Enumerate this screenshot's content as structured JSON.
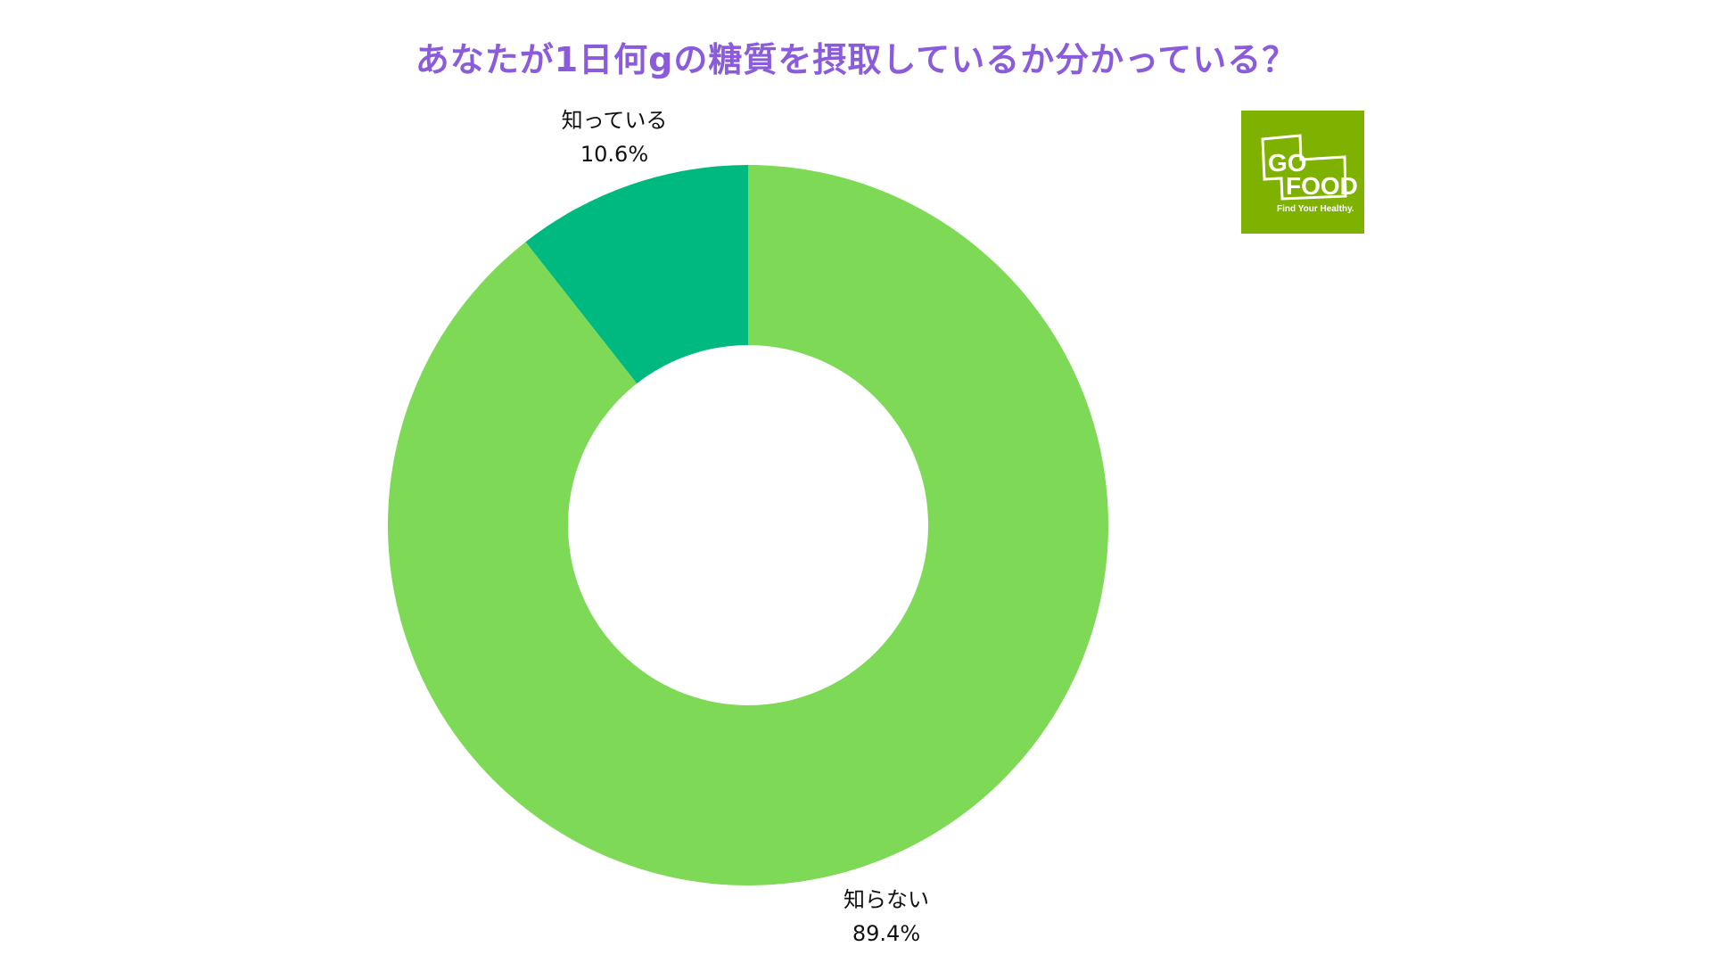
{
  "title": "あなたが1日何gの糖質を摂取しているか分かっている？",
  "colors": {
    "title": "#8a5cdb",
    "known": "#00b980",
    "unknown": "#7ed957",
    "logo_bg": "#7fb200"
  },
  "logo": {
    "line1": "GO",
    "line2": "FOOD",
    "tagline": "Find Your Healthy."
  },
  "labels": {
    "known": {
      "name": "知っている",
      "value": "10.6%"
    },
    "unknown": {
      "name": "知らない",
      "value": "89.4%"
    }
  },
  "chart_data": {
    "type": "pie",
    "subtype": "donut",
    "title": "あなたが1日何gの糖質を摂取しているか分かっている？",
    "categories": [
      "知っている",
      "知らない"
    ],
    "values": [
      10.6,
      89.4
    ],
    "unit": "%",
    "start_angle": "12 o'clock, counter-clockwise for 知っている",
    "legend": "none (direct labels)"
  }
}
